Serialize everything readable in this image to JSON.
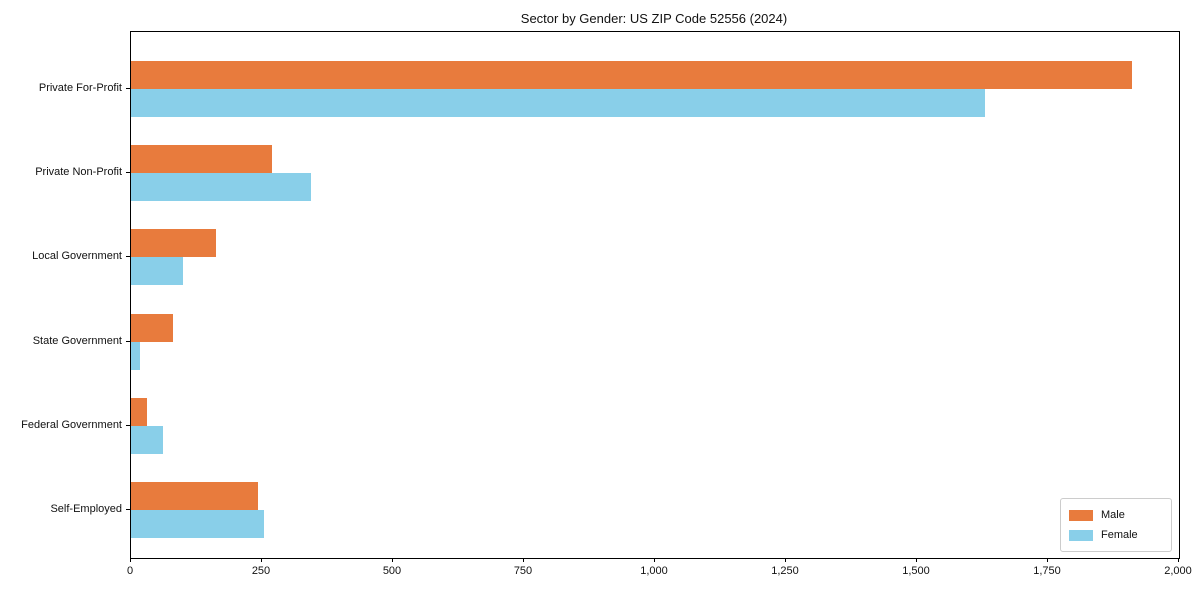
{
  "title": "Sector by Gender: US ZIP Code 52556 (2024)",
  "colors": {
    "male": "#E87B3D",
    "female": "#89CFE9",
    "axis": "#000000",
    "background": "#FFFFFF",
    "legend_border": "#CCCCCC"
  },
  "legend": {
    "position": "lower right",
    "entries": [
      {
        "label": "Male"
      },
      {
        "label": "Female"
      }
    ]
  },
  "chart_data": {
    "type": "bar",
    "orientation": "horizontal",
    "title": "Sector by Gender: US ZIP Code 52556 (2024)",
    "xlabel": "",
    "ylabel": "",
    "categories": [
      "Private For-Profit",
      "Private Non-Profit",
      "Local Government",
      "State Government",
      "Federal Government",
      "Self-Employed"
    ],
    "series": [
      {
        "name": "Male",
        "color": "#E87B3D",
        "values": [
          1910,
          270,
          162,
          80,
          30,
          243
        ]
      },
      {
        "name": "Female",
        "color": "#89CFE9",
        "values": [
          1630,
          344,
          99,
          17,
          62,
          253
        ]
      }
    ],
    "xlim": [
      0,
      2000
    ],
    "xticks": [
      0,
      250,
      500,
      750,
      1000,
      1250,
      1500,
      1750,
      2000
    ],
    "xtick_labels": [
      "0",
      "250",
      "500",
      "750",
      "1,000",
      "1,250",
      "1,500",
      "1,750",
      "2,000"
    ],
    "grid": false,
    "legend_position": "lower right"
  }
}
